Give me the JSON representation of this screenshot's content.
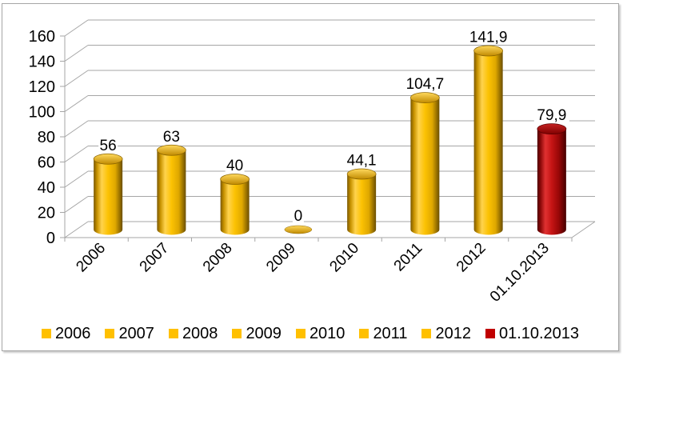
{
  "chart": {
    "background": "#FFFFFF",
    "frame_border_color": "#A6A6A6",
    "gridline_color": "#A6A6A6",
    "axis_color": "#A6A6A6",
    "text_color": "#000000"
  },
  "chart_data": {
    "type": "bar",
    "subtype": "3d-cylinder",
    "title": "",
    "xlabel": "",
    "ylabel": "",
    "categories": [
      "2006",
      "2007",
      "2008",
      "2009",
      "2010",
      "2011",
      "2012",
      "01.10.2013"
    ],
    "values": [
      56,
      63,
      40,
      0,
      44.1,
      104.7,
      141.9,
      79.9
    ],
    "value_labels": [
      "56",
      "63",
      "40",
      "0",
      "44,1",
      "104,7",
      "141,9",
      "79,9"
    ],
    "bar_colors": [
      "#FFC000",
      "#FFC000",
      "#FFC000",
      "#FFC000",
      "#FFC000",
      "#FFC000",
      "#FFC000",
      "#C00000"
    ],
    "ylim": [
      0,
      160
    ],
    "ytick_step": 20,
    "ytick_labels": [
      "0",
      "20",
      "40",
      "60",
      "80",
      "100",
      "120",
      "140",
      "160"
    ],
    "grid": true,
    "legend_position": "bottom",
    "legend": [
      {
        "label": "2006",
        "color": "#FFC000"
      },
      {
        "label": "2007",
        "color": "#FFC000"
      },
      {
        "label": "2008",
        "color": "#FFC000"
      },
      {
        "label": "2009",
        "color": "#FFC000"
      },
      {
        "label": "2010",
        "color": "#FFC000"
      },
      {
        "label": "2011",
        "color": "#FFC000"
      },
      {
        "label": "2012",
        "color": "#FFC000"
      },
      {
        "label": "01.10.2013",
        "color": "#C00000"
      }
    ]
  }
}
